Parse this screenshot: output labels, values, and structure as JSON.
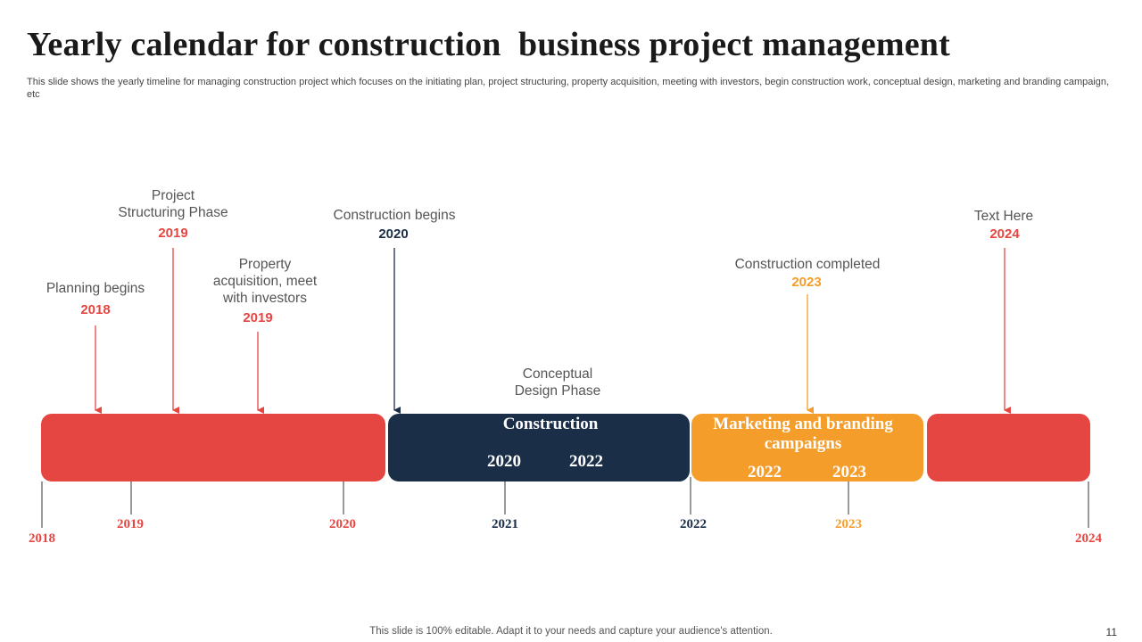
{
  "title": "Yearly calendar for construction  business project management",
  "subtitle": "This slide shows the yearly timeline for managing construction project which focuses on the initiating plan, project structuring, property acquisition, meeting with investors, begin construction work, conceptual design, marketing and branding campaign, etc",
  "colors": {
    "red": "#e64641",
    "navy": "#1b2e48",
    "orange": "#f59d2a"
  },
  "milestones": [
    {
      "text": "Planning begins",
      "year": "2018"
    },
    {
      "text": "Project\nStructuring  Phase",
      "year": "2019"
    },
    {
      "text": "Property\nacquisition, meet\nwith investors",
      "year": "2019"
    },
    {
      "text": "Construction begins",
      "year": "2020"
    },
    {
      "text": "Conceptual\nDesign Phase",
      "year": ""
    },
    {
      "text": "Construction  completed",
      "year": "2023"
    },
    {
      "text": "Text  Here",
      "year": "2024"
    }
  ],
  "bars": {
    "construction": {
      "title": "Construction",
      "start": "2020",
      "end": "2022"
    },
    "marketing": {
      "title": "Marketing and branding\ncampaigns",
      "start": "2022",
      "end": "2023"
    }
  },
  "axis_years": [
    "2018",
    "2019",
    "2020",
    "2021",
    "2022",
    "2023",
    "2024"
  ],
  "footer": "This slide is 100% editable. Adapt it to your needs and capture your audience's attention.",
  "page_number": "11"
}
